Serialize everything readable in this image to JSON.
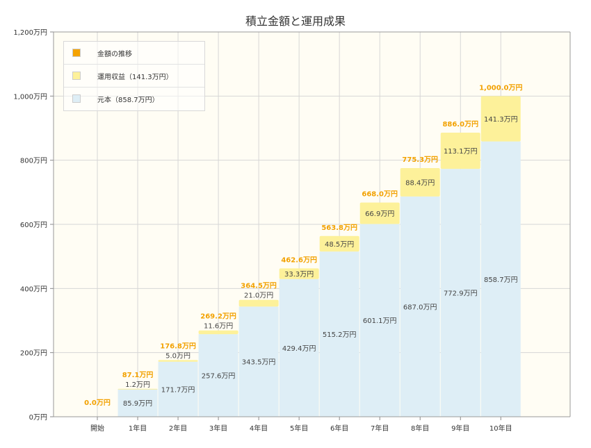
{
  "chart_data": {
    "type": "bar",
    "title": "積立金額と運用成果",
    "categories": [
      "開始",
      "1年目",
      "2年目",
      "3年目",
      "4年目",
      "5年目",
      "6年目",
      "7年目",
      "8年目",
      "9年目",
      "10年目"
    ],
    "series": [
      {
        "name": "元本（858.7万円）",
        "color": "#deeef6",
        "values": [
          0.0,
          85.9,
          171.7,
          257.6,
          343.5,
          429.4,
          515.2,
          601.1,
          687.0,
          772.9,
          858.7
        ],
        "labels": [
          "",
          "85.9万円",
          "171.7万円",
          "257.6万円",
          "343.5万円",
          "429.4万円",
          "515.2万円",
          "601.1万円",
          "687.0万円",
          "772.9万円",
          "858.7万円"
        ]
      },
      {
        "name": "運用収益（141.3万円）",
        "color": "#fdf19a",
        "values": [
          0.0,
          1.2,
          5.0,
          11.6,
          21.0,
          33.3,
          48.5,
          66.9,
          88.4,
          113.1,
          141.3
        ],
        "labels": [
          "",
          "1.2万円",
          "5.0万円",
          "11.6万円",
          "21.0万円",
          "33.3万円",
          "48.5万円",
          "66.9万円",
          "88.4万円",
          "113.1万円",
          "141.3万円"
        ]
      }
    ],
    "totals": {
      "name": "金額の推移",
      "color": "#f5a300",
      "values": [
        0.0,
        87.1,
        176.8,
        269.2,
        364.5,
        462.6,
        563.8,
        668.0,
        775.3,
        886.0,
        1000.0
      ],
      "labels": [
        "0.0万円",
        "87.1万円",
        "176.8万円",
        "269.2万円",
        "364.5万円",
        "462.6万円",
        "563.8万円",
        "668.0万円",
        "775.3万円",
        "886.0万円",
        "1,000.0万円"
      ]
    },
    "ylim": [
      0,
      1200
    ],
    "yticks": [
      0,
      200,
      400,
      600,
      800,
      1000,
      1200
    ],
    "ytick_labels": [
      "0万円",
      "200万円",
      "400万円",
      "600万円",
      "800万円",
      "1,000万円",
      "1,200万円"
    ],
    "grid": true,
    "legend_position": "top-left",
    "plot_background": "#fffdf4"
  }
}
